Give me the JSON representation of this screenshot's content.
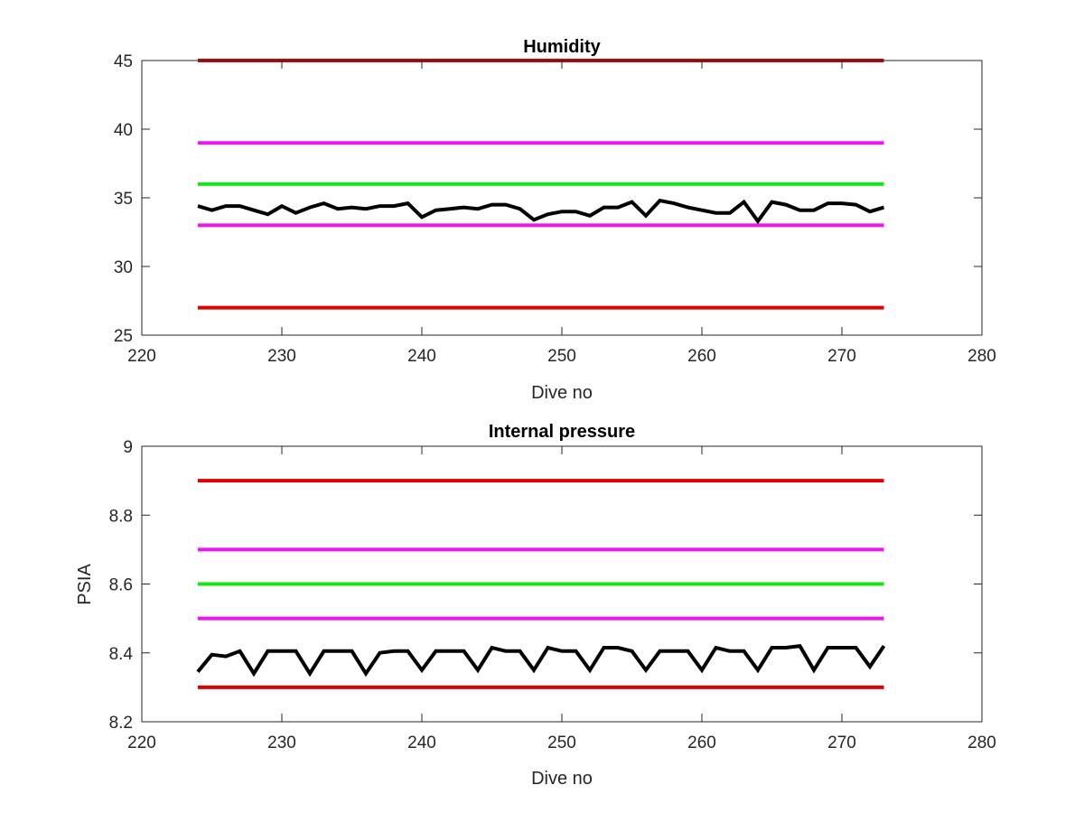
{
  "chart_data": [
    {
      "type": "line",
      "title": "Humidity",
      "xlabel": "Dive no",
      "ylabel": "",
      "xlim": [
        220,
        280
      ],
      "ylim": [
        25,
        45
      ],
      "xticks": [
        "220",
        "230",
        "240",
        "250",
        "260",
        "270",
        "280"
      ],
      "yticks": [
        "25",
        "30",
        "35",
        "40",
        "45"
      ],
      "grid": false,
      "legend": "none",
      "threshold_lines": [
        {
          "y": 45,
          "x": [
            224,
            273
          ],
          "color": "#e00000"
        },
        {
          "y": 39,
          "x": [
            224,
            273
          ],
          "color": "#ee16ee"
        },
        {
          "y": 36,
          "x": [
            224,
            273
          ],
          "color": "#14e614"
        },
        {
          "y": 33,
          "x": [
            224,
            273
          ],
          "color": "#ee16ee"
        },
        {
          "y": 27,
          "x": [
            224,
            273
          ],
          "color": "#e00000"
        }
      ],
      "series": [
        {
          "color": "#000000",
          "x": [
            224,
            225,
            226,
            227,
            228,
            229,
            230,
            231,
            232,
            233,
            234,
            235,
            236,
            237,
            238,
            239,
            240,
            241,
            242,
            243,
            244,
            245,
            246,
            247,
            248,
            249,
            250,
            251,
            252,
            253,
            254,
            255,
            256,
            257,
            258,
            259,
            260,
            261,
            262,
            263,
            264,
            265,
            266,
            267,
            268,
            269,
            270,
            271,
            272,
            273
          ],
          "values": [
            34.4,
            34.1,
            34.4,
            34.4,
            34.1,
            33.8,
            34.4,
            33.9,
            34.3,
            34.6,
            34.2,
            34.3,
            34.2,
            34.4,
            34.4,
            34.6,
            33.6,
            34.1,
            34.2,
            34.3,
            34.2,
            34.5,
            34.5,
            34.2,
            33.4,
            33.8,
            34.0,
            34.0,
            33.7,
            34.3,
            34.3,
            34.7,
            33.7,
            34.8,
            34.6,
            34.3,
            34.1,
            33.9,
            33.9,
            34.7,
            33.3,
            34.7,
            34.5,
            34.1,
            34.1,
            34.6,
            34.6,
            34.5,
            34.0,
            34.3
          ]
        }
      ]
    },
    {
      "type": "line",
      "title": "Internal pressure",
      "xlabel": "Dive no",
      "ylabel": "PSIA",
      "xlim": [
        220,
        280
      ],
      "ylim": [
        8.2,
        9
      ],
      "xticks": [
        "220",
        "230",
        "240",
        "250",
        "260",
        "270",
        "280"
      ],
      "yticks": [
        "8.2",
        "8.4",
        "8.6",
        "8.8",
        "9"
      ],
      "grid": false,
      "legend": "none",
      "threshold_lines": [
        {
          "y": 8.9,
          "x": [
            224,
            273
          ],
          "color": "#e00000"
        },
        {
          "y": 8.7,
          "x": [
            224,
            273
          ],
          "color": "#ee16ee"
        },
        {
          "y": 8.6,
          "x": [
            224,
            273
          ],
          "color": "#14e614"
        },
        {
          "y": 8.5,
          "x": [
            224,
            273
          ],
          "color": "#ee16ee"
        },
        {
          "y": 8.3,
          "x": [
            224,
            273
          ],
          "color": "#e00000"
        }
      ],
      "series": [
        {
          "color": "#000000",
          "x": [
            224,
            225,
            226,
            227,
            228,
            229,
            230,
            231,
            232,
            233,
            234,
            235,
            236,
            237,
            238,
            239,
            240,
            241,
            242,
            243,
            244,
            245,
            246,
            247,
            248,
            249,
            250,
            251,
            252,
            253,
            254,
            255,
            256,
            257,
            258,
            259,
            260,
            261,
            262,
            263,
            264,
            265,
            266,
            267,
            268,
            269,
            270,
            271,
            272,
            273
          ],
          "values": [
            8.345,
            8.395,
            8.39,
            8.405,
            8.34,
            8.405,
            8.405,
            8.405,
            8.34,
            8.405,
            8.405,
            8.405,
            8.34,
            8.4,
            8.405,
            8.405,
            8.35,
            8.405,
            8.405,
            8.405,
            8.35,
            8.415,
            8.405,
            8.405,
            8.35,
            8.415,
            8.405,
            8.405,
            8.35,
            8.415,
            8.415,
            8.405,
            8.35,
            8.405,
            8.405,
            8.405,
            8.35,
            8.415,
            8.405,
            8.405,
            8.35,
            8.415,
            8.415,
            8.42,
            8.35,
            8.415,
            8.415,
            8.415,
            8.36,
            8.42
          ]
        }
      ]
    }
  ]
}
